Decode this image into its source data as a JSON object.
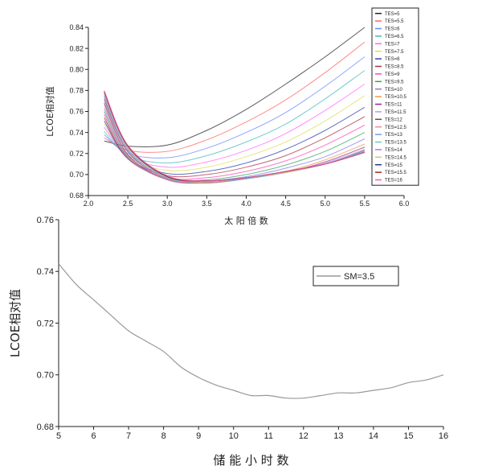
{
  "chart_data": [
    {
      "type": "line",
      "xlabel": "太 阳 倍 数",
      "ylabel": "LCOE相对值",
      "xlim": [
        2.0,
        6.0
      ],
      "ylim": [
        0.68,
        0.84
      ],
      "xticks": [
        "2.0",
        "2.5",
        "3.0",
        "3.5",
        "4.0",
        "4.5",
        "5.0",
        "5.5",
        "6.0"
      ],
      "yticks": [
        "0.68",
        "0.70",
        "0.72",
        "0.74",
        "0.76",
        "0.78",
        "0.80",
        "0.82",
        "0.84"
      ],
      "legend_position": "right",
      "x": [
        2.2,
        2.5,
        3.0,
        3.5,
        4.0,
        4.5,
        5.0,
        5.5
      ],
      "series": [
        {
          "name": "TES=5",
          "color": "#222222",
          "values": [
            0.732,
            0.727,
            0.728,
            0.742,
            0.762,
            0.786,
            0.812,
            0.84
          ]
        },
        {
          "name": "TES=5.5",
          "color": "#ff6666",
          "values": [
            0.735,
            0.723,
            0.722,
            0.733,
            0.75,
            0.771,
            0.797,
            0.826
          ]
        },
        {
          "name": "TES=6",
          "color": "#6688ff",
          "values": [
            0.738,
            0.72,
            0.716,
            0.725,
            0.74,
            0.759,
            0.784,
            0.812
          ]
        },
        {
          "name": "TES=6.5",
          "color": "#44bbbb",
          "values": [
            0.741,
            0.718,
            0.711,
            0.718,
            0.731,
            0.748,
            0.772,
            0.799
          ]
        },
        {
          "name": "TES=7",
          "color": "#ff66ff",
          "values": [
            0.745,
            0.717,
            0.707,
            0.712,
            0.723,
            0.739,
            0.761,
            0.786
          ]
        },
        {
          "name": "TES=7.5",
          "color": "#dddd55",
          "values": [
            0.748,
            0.716,
            0.704,
            0.707,
            0.717,
            0.731,
            0.751,
            0.775
          ]
        },
        {
          "name": "TES=8",
          "color": "#3344aa",
          "values": [
            0.751,
            0.715,
            0.701,
            0.703,
            0.711,
            0.724,
            0.742,
            0.764
          ]
        },
        {
          "name": "TES=8.5",
          "color": "#aa3344",
          "values": [
            0.754,
            0.715,
            0.699,
            0.7,
            0.707,
            0.718,
            0.735,
            0.755
          ]
        },
        {
          "name": "TES=9",
          "color": "#ff44bb",
          "values": [
            0.757,
            0.715,
            0.697,
            0.697,
            0.703,
            0.713,
            0.728,
            0.747
          ]
        },
        {
          "name": "TES=9.5",
          "color": "#33aa55",
          "values": [
            0.76,
            0.716,
            0.696,
            0.695,
            0.7,
            0.709,
            0.722,
            0.74
          ]
        },
        {
          "name": "TES=10",
          "color": "#8877ee",
          "values": [
            0.763,
            0.717,
            0.695,
            0.694,
            0.698,
            0.706,
            0.717,
            0.734
          ]
        },
        {
          "name": "TES=10.5",
          "color": "#ee9944",
          "values": [
            0.766,
            0.718,
            0.695,
            0.693,
            0.697,
            0.703,
            0.714,
            0.729
          ]
        },
        {
          "name": "TES=11",
          "color": "#992288",
          "values": [
            0.768,
            0.719,
            0.695,
            0.692,
            0.696,
            0.702,
            0.712,
            0.726
          ]
        },
        {
          "name": "TES=11.5",
          "color": "#bb99ee",
          "values": [
            0.77,
            0.721,
            0.695,
            0.692,
            0.696,
            0.702,
            0.711,
            0.724
          ]
        },
        {
          "name": "TES=12",
          "color": "#555555",
          "values": [
            0.772,
            0.722,
            0.696,
            0.692,
            0.696,
            0.702,
            0.71,
            0.723
          ]
        },
        {
          "name": "TES=12.5",
          "color": "#ee8899",
          "values": [
            0.774,
            0.723,
            0.696,
            0.692,
            0.696,
            0.702,
            0.71,
            0.722
          ]
        },
        {
          "name": "TES=13",
          "color": "#7799ee",
          "values": [
            0.775,
            0.724,
            0.697,
            0.693,
            0.696,
            0.702,
            0.71,
            0.722
          ]
        },
        {
          "name": "TES=13.5",
          "color": "#66cccc",
          "values": [
            0.776,
            0.725,
            0.697,
            0.693,
            0.696,
            0.702,
            0.71,
            0.722
          ]
        },
        {
          "name": "TES=14",
          "color": "#cc66ee",
          "values": [
            0.777,
            0.726,
            0.698,
            0.693,
            0.697,
            0.702,
            0.71,
            0.721
          ]
        },
        {
          "name": "TES=14.5",
          "color": "#cccc66",
          "values": [
            0.778,
            0.726,
            0.698,
            0.693,
            0.697,
            0.702,
            0.71,
            0.721
          ]
        },
        {
          "name": "TES=15",
          "color": "#223388",
          "values": [
            0.779,
            0.727,
            0.698,
            0.694,
            0.697,
            0.703,
            0.71,
            0.721
          ]
        },
        {
          "name": "TES=15.5",
          "color": "#aa2222",
          "values": [
            0.779,
            0.727,
            0.698,
            0.694,
            0.697,
            0.703,
            0.71,
            0.721
          ]
        },
        {
          "name": "TES=16",
          "color": "#ff55aa",
          "values": [
            0.78,
            0.728,
            0.699,
            0.694,
            0.697,
            0.703,
            0.71,
            0.721
          ]
        }
      ]
    },
    {
      "type": "line",
      "xlabel": "储 能 小 时 数",
      "ylabel": "LCOE相对值",
      "xlim": [
        5,
        16
      ],
      "ylim": [
        0.68,
        0.76
      ],
      "xticks": [
        "5",
        "6",
        "7",
        "8",
        "9",
        "10",
        "11",
        "12",
        "13",
        "14",
        "15",
        "16"
      ],
      "yticks": [
        "0.68",
        "0.70",
        "0.72",
        "0.74",
        "0.76"
      ],
      "legend_position": "top-right",
      "x": [
        5,
        5.5,
        6,
        6.5,
        7,
        7.5,
        8,
        8.5,
        9,
        9.5,
        10,
        10.5,
        11,
        11.5,
        12,
        12.5,
        13,
        13.5,
        14,
        14.5,
        15,
        15.5,
        16
      ],
      "series": [
        {
          "name": "SM=3.5",
          "color": "#999999",
          "values": [
            0.743,
            0.735,
            0.729,
            0.723,
            0.717,
            0.713,
            0.709,
            0.703,
            0.699,
            0.696,
            0.694,
            0.692,
            0.692,
            0.691,
            0.691,
            0.692,
            0.693,
            0.693,
            0.694,
            0.695,
            0.697,
            0.698,
            0.7
          ]
        }
      ]
    }
  ]
}
